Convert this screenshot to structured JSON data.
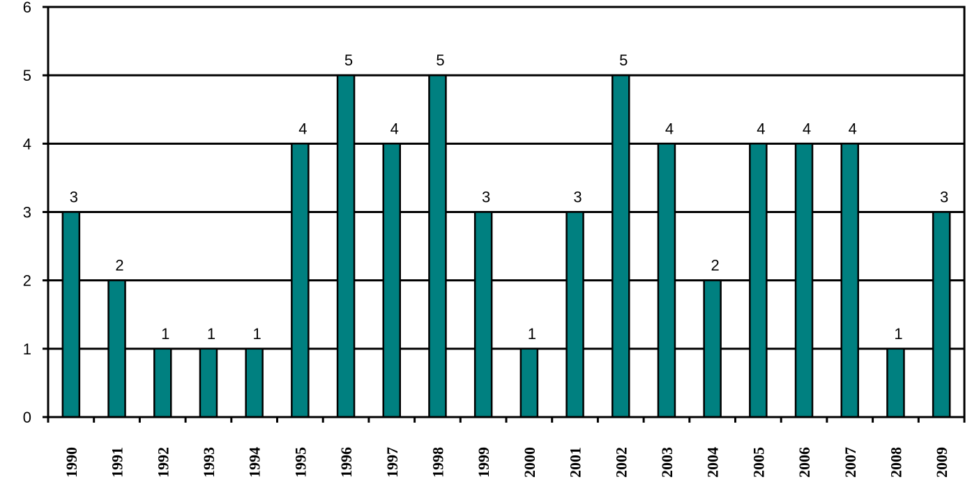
{
  "chart_data": {
    "type": "bar",
    "title": "",
    "xlabel": "",
    "ylabel": "",
    "categories": [
      "1990",
      "1991",
      "1992",
      "1993",
      "1994",
      "1995",
      "1996",
      "1997",
      "1998",
      "1999",
      "2000",
      "2001",
      "2002",
      "2003",
      "2004",
      "2005",
      "2006",
      "2007",
      "2008",
      "2009"
    ],
    "values": [
      3,
      2,
      1,
      1,
      1,
      4,
      5,
      4,
      5,
      3,
      1,
      3,
      5,
      4,
      2,
      4,
      4,
      4,
      1,
      3
    ],
    "data_labels": [
      "3",
      "2",
      "1",
      "1",
      "1",
      "4",
      "5",
      "4",
      "5",
      "3",
      "1",
      "3",
      "5",
      "4",
      "2",
      "4",
      "4",
      "4",
      "1",
      "3"
    ],
    "ylim": [
      0,
      6
    ],
    "yticks": [
      "0",
      "1",
      "2",
      "3",
      "4",
      "5",
      "6"
    ],
    "grid": true,
    "legend": "none",
    "bar_color": "#008080"
  }
}
